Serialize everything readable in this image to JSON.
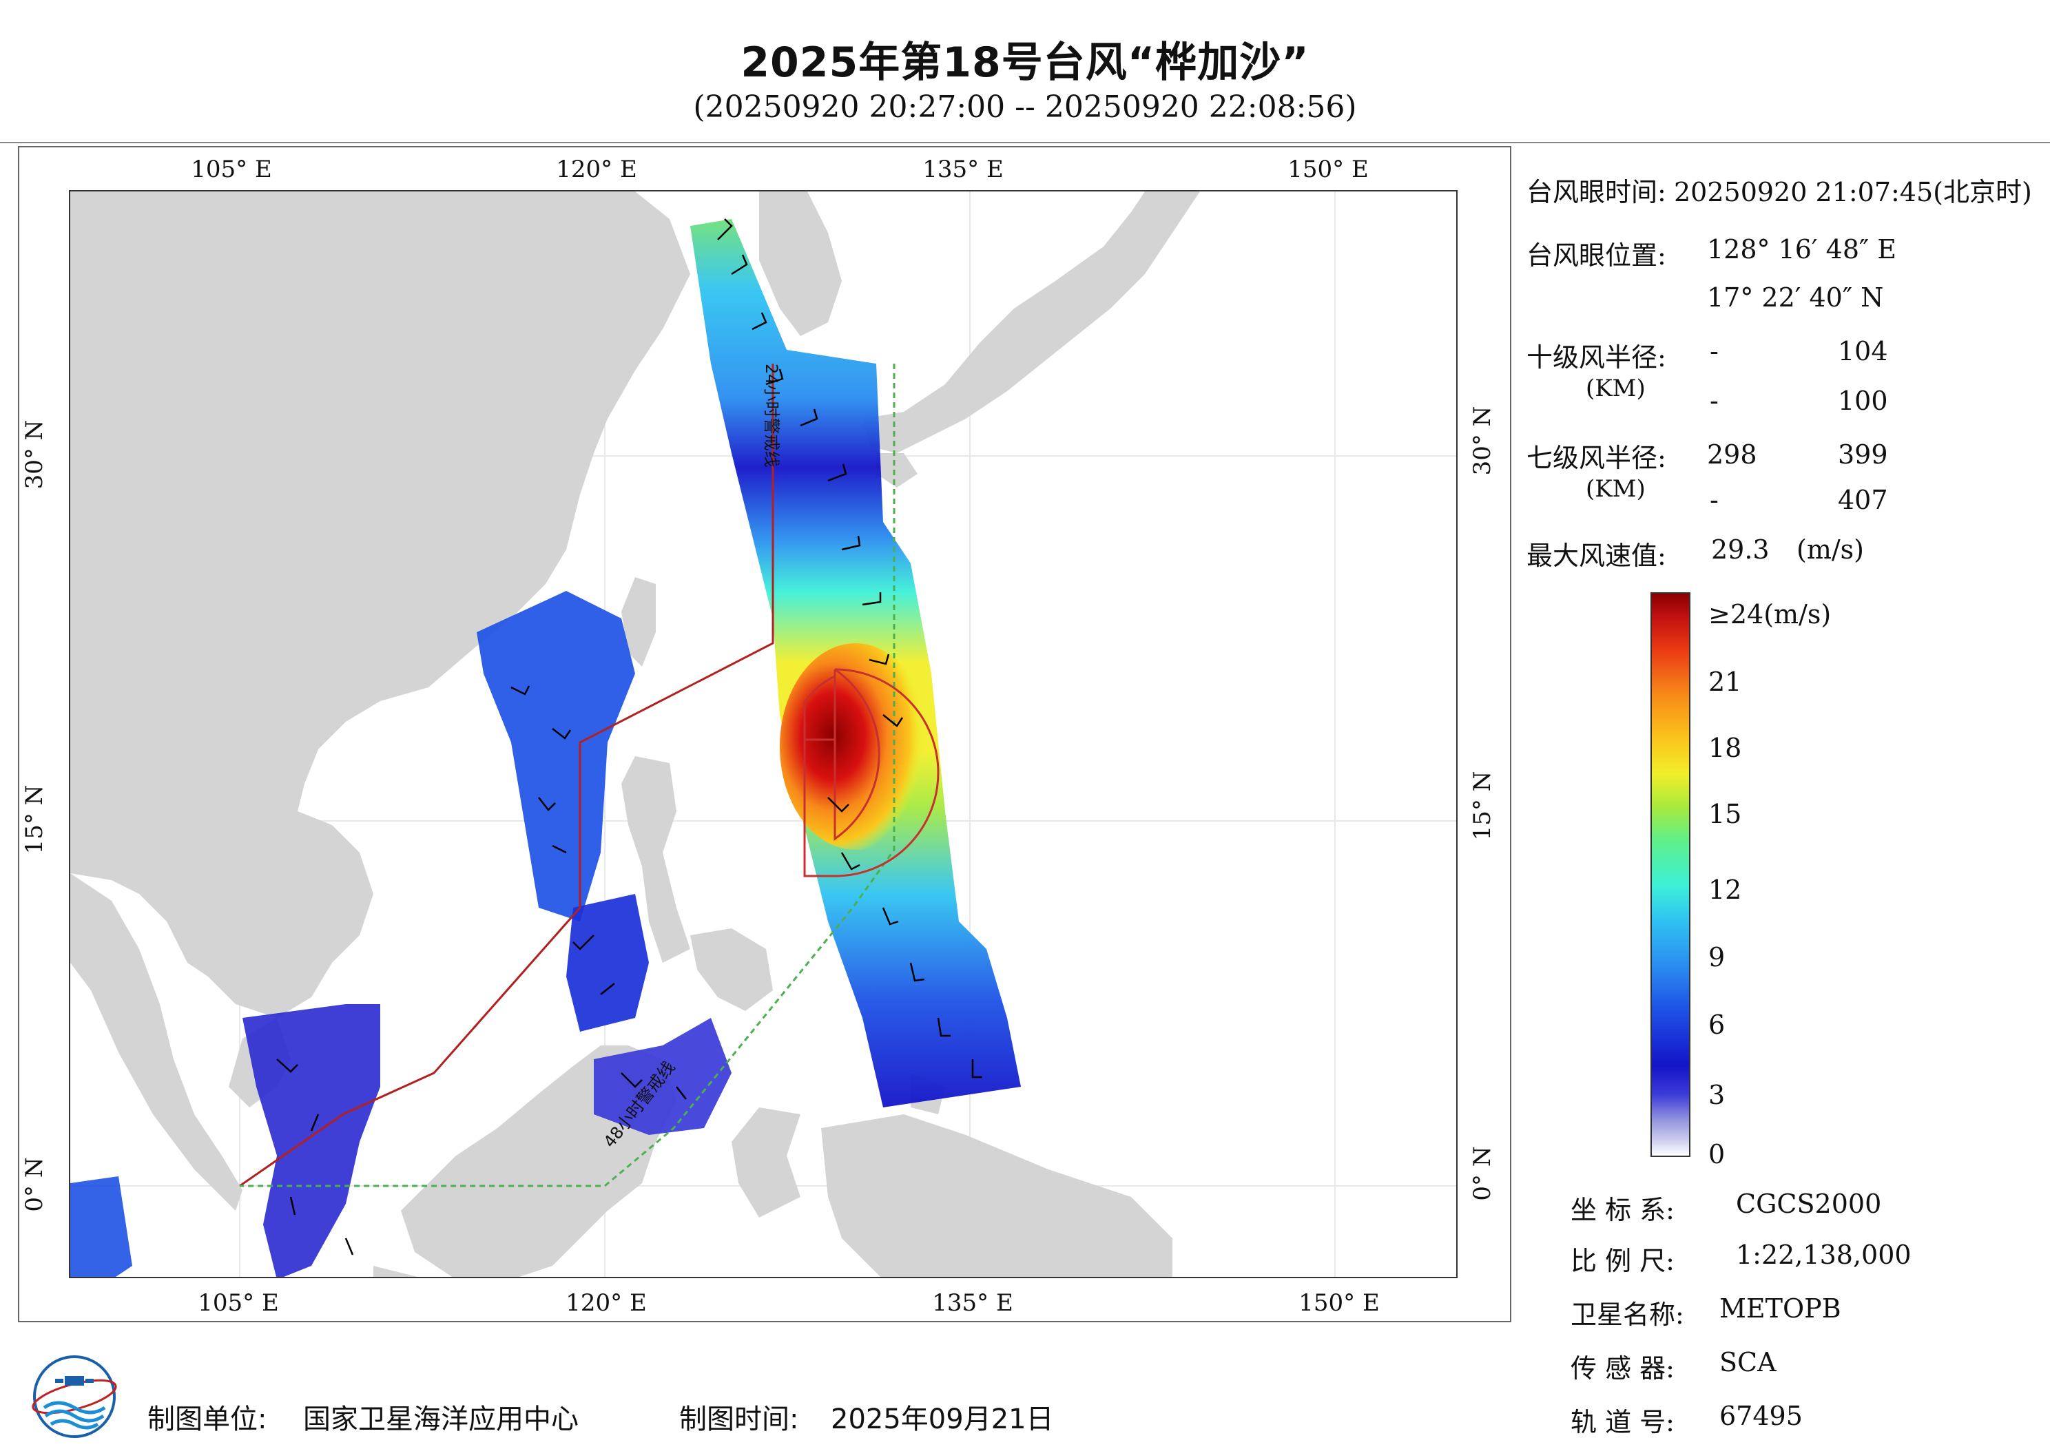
{
  "title": "2025年第18号台风“桦加沙”",
  "subtitle": "(20250920 20:27:00 -- 20250920 22:08:56)",
  "axes": {
    "top": [
      "105° E",
      "120° E",
      "135° E",
      "150° E"
    ],
    "bottom": [
      "105° E",
      "120° E",
      "135° E",
      "150° E"
    ],
    "left": [
      "30° N",
      "15° N",
      "0° N"
    ],
    "right": [
      "30° N",
      "15° N",
      "0° N"
    ]
  },
  "map": {
    "warning_24h": "24小时警戒线",
    "warning_48h": "48小时警戒线",
    "colors": {
      "land": "#d4d4d4",
      "warn24": "#b22020",
      "warn48": "#4caf50",
      "radius": "#c83030",
      "barb": "#000000"
    }
  },
  "info": {
    "eye_time_label": "台风眼时间:",
    "eye_time_value": "20250920 21:07:45(北京时)",
    "eye_pos_label": "台风眼位置:",
    "eye_lon": "128° 16′ 48″ E",
    "eye_lat": "17° 22′ 40″ N",
    "r10_label": "十级风半径:",
    "r10_row1_a": "-",
    "r10_row1_b": "104",
    "r10_unit": "(KM)",
    "r10_row2_a": "-",
    "r10_row2_b": "100",
    "r7_label": "七级风半径:",
    "r7_row1_a": "298",
    "r7_row1_b": "399",
    "r7_unit": "(KM)",
    "r7_row2_a": "-",
    "r7_row2_b": "407",
    "max_label": "最大风速值:",
    "max_value": "29.3",
    "max_unit": "(m/s)"
  },
  "colorbar": {
    "top_label": "≥24(m/s)",
    "labels": [
      "21",
      "18",
      "15",
      "12",
      "9",
      "6",
      "3",
      "0"
    ],
    "values": [
      24,
      21,
      18,
      15,
      12,
      9,
      6,
      3,
      0
    ]
  },
  "meta": {
    "crs_label": "坐 标 系:",
    "crs_value": "CGCS2000",
    "scale_label": "比 例 尺:",
    "scale_value": "1:22,138,000",
    "sat_label": "卫星名称:",
    "sat_value": "METOPB",
    "sensor_label": "传 感 器:",
    "sensor_value": "SCA",
    "orbit_label": "轨 道 号:",
    "orbit_value": "67495"
  },
  "footer": {
    "maker_label": "制图单位:",
    "maker_value": "国家卫星海洋应用中心",
    "date_label": "制图时间:",
    "date_value": "2025年09月21日"
  }
}
